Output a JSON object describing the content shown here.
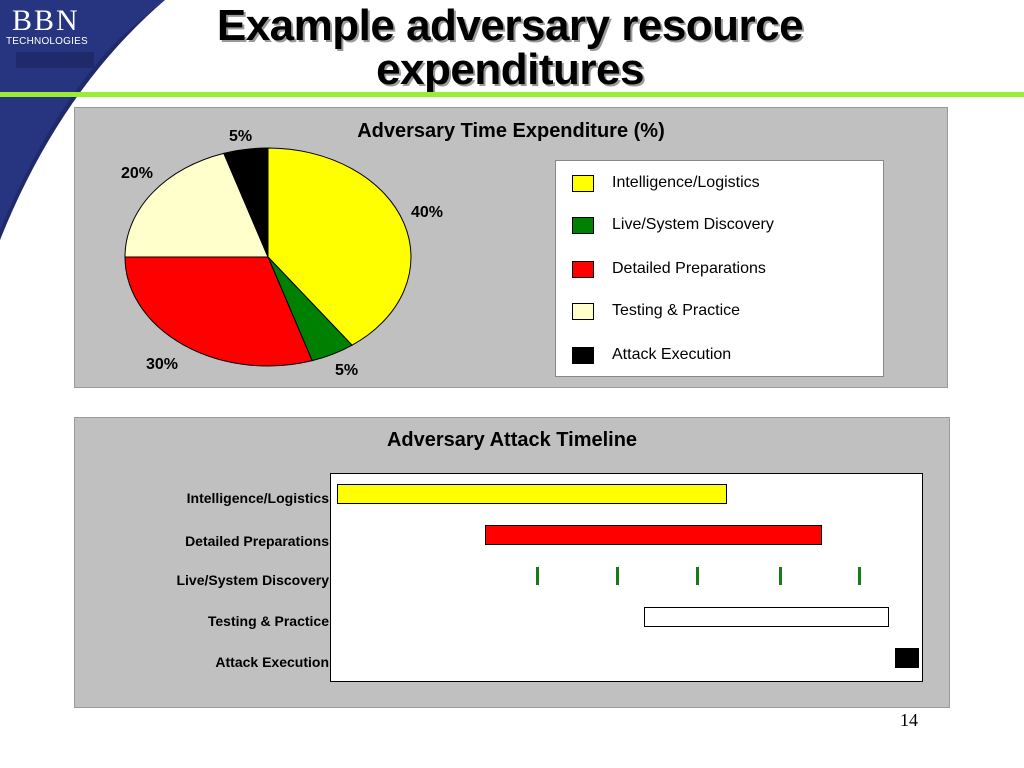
{
  "logo": {
    "main": "BBN",
    "sub": "TECHNOLOGIES"
  },
  "slide_title_line1": "Example adversary resource",
  "slide_title_line2": "expenditures",
  "page_number": "14",
  "colors": {
    "intelligence": "#ffff00",
    "discovery": "#008000",
    "preparations": "#ff0000",
    "testing": "#ffffcc",
    "attack": "#000000",
    "accent_rule": "#99ee33",
    "logo_navy": "#1f2a6b"
  },
  "chart_data": [
    {
      "type": "pie",
      "title": "Adversary Time Expenditure (%)",
      "start_angle_deg": 0,
      "direction": "clockwise",
      "slices": [
        {
          "label": "Intelligence/Logistics",
          "value": 40,
          "display": "40%",
          "color": "#ffff00"
        },
        {
          "label": "Live/System Discovery",
          "value": 5,
          "display": "5%",
          "color": "#008000"
        },
        {
          "label": "Detailed Preparations",
          "value": 30,
          "display": "30%",
          "color": "#ff0000"
        },
        {
          "label": "Testing & Practice",
          "value": 20,
          "display": "20%",
          "color": "#ffffcc"
        },
        {
          "label": "Attack Execution",
          "value": 5,
          "display": "5%",
          "color": "#000000"
        }
      ],
      "legend": {
        "position": "right",
        "entries": [
          {
            "label": "Intelligence/Logistics",
            "color": "#ffff00"
          },
          {
            "label": "Live/System Discovery",
            "color": "#008000"
          },
          {
            "label": "Detailed Preparations",
            "color": "#ff0000"
          },
          {
            "label": "Testing & Practice",
            "color": "#ffffcc"
          },
          {
            "label": "Attack Execution",
            "color": "#000000"
          }
        ]
      }
    },
    {
      "type": "bar",
      "orientation": "horizontal-timeline",
      "title": "Adversary Attack Timeline",
      "xlim": [
        0,
        100
      ],
      "axis_labels_visible": false,
      "rows": [
        {
          "label": "Intelligence/Logistics",
          "kind": "bar",
          "start": 1,
          "end": 67,
          "color": "#ffff00"
        },
        {
          "label": "Detailed Preparations",
          "kind": "bar",
          "start": 26,
          "end": 83,
          "color": "#ff0000"
        },
        {
          "label": "Live/System Discovery",
          "kind": "ticks",
          "points": [
            35,
            48.5,
            62,
            76,
            89.5
          ],
          "color": "#1a7a1a"
        },
        {
          "label": "Testing & Practice",
          "kind": "bar",
          "start": 53,
          "end": 94.5,
          "color": "#ffffff"
        },
        {
          "label": "Attack Execution",
          "kind": "bar",
          "start": 95.5,
          "end": 99.5,
          "color": "#000000"
        }
      ]
    }
  ]
}
